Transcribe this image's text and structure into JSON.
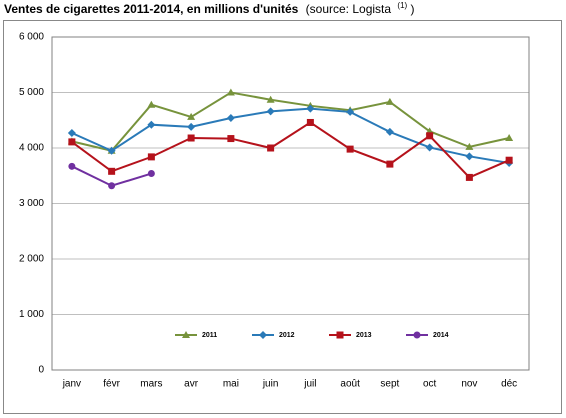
{
  "chart_data": {
    "type": "line",
    "title": "Ventes de cigarettes 2011-2014, en millions d'unités",
    "source": "(source: Logista",
    "source_note": "(1)",
    "source_close": ")",
    "categories": [
      "janv",
      "févr",
      "mars",
      "avr",
      "mai",
      "juin",
      "juil",
      "août",
      "sept",
      "oct",
      "nov",
      "déc"
    ],
    "series": [
      {
        "name": "2011",
        "color": "#77933c",
        "marker": "triangle",
        "values": [
          4120,
          3950,
          4780,
          4560,
          5000,
          4870,
          4760,
          4680,
          4830,
          4300,
          4020,
          4180
        ]
      },
      {
        "name": "2012",
        "color": "#2a7ab8",
        "marker": "diamond",
        "values": [
          4270,
          3950,
          4420,
          4380,
          4540,
          4660,
          4710,
          4650,
          4290,
          4010,
          3850,
          3730
        ]
      },
      {
        "name": "2013",
        "color": "#b5121b",
        "marker": "square",
        "values": [
          4110,
          3580,
          3840,
          4180,
          4170,
          4000,
          4460,
          3980,
          3710,
          4220,
          3470,
          3780
        ]
      },
      {
        "name": "2014",
        "color": "#7030a0",
        "marker": "circle",
        "values": [
          3670,
          3320,
          3540,
          null,
          null,
          null,
          null,
          null,
          null,
          null,
          null,
          null
        ]
      }
    ],
    "ylim": [
      0,
      6000
    ],
    "yticks": [
      0,
      {
        "value": 1000,
        "label": "1 000"
      },
      {
        "value": 2000,
        "label": "2 000"
      },
      {
        "value": 3000,
        "label": "3 000"
      },
      {
        "value": 4000,
        "label": "4 000"
      },
      {
        "value": 5000,
        "label": "5 000"
      },
      {
        "value": 6000,
        "label": "6 000"
      }
    ],
    "grid": true,
    "legend": "bottom"
  }
}
